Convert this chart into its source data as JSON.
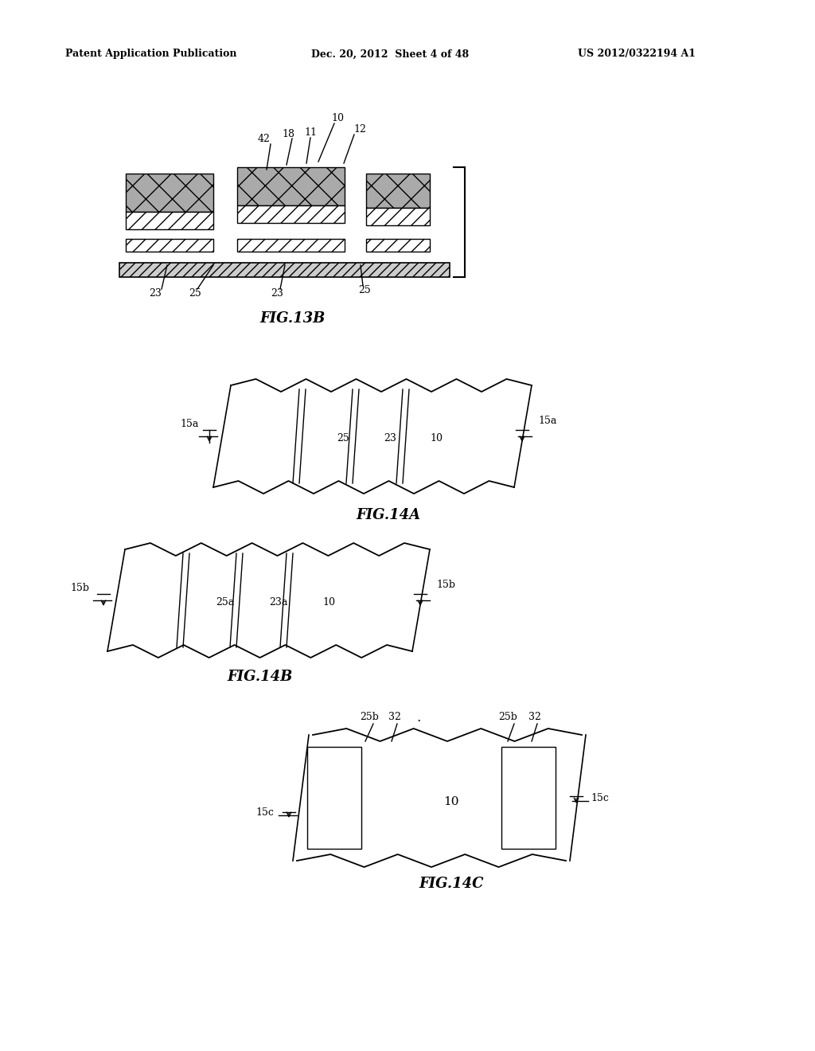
{
  "background_color": "#ffffff",
  "header_left": "Patent Application Publication",
  "header_center": "Dec. 20, 2012  Sheet 4 of 48",
  "header_right": "US 2012/0322194 A1",
  "fig13b_label": "FIG.13B",
  "fig14a_label": "FIG.14A",
  "fig14b_label": "FIG.14B",
  "fig14c_label": "FIG.14C"
}
